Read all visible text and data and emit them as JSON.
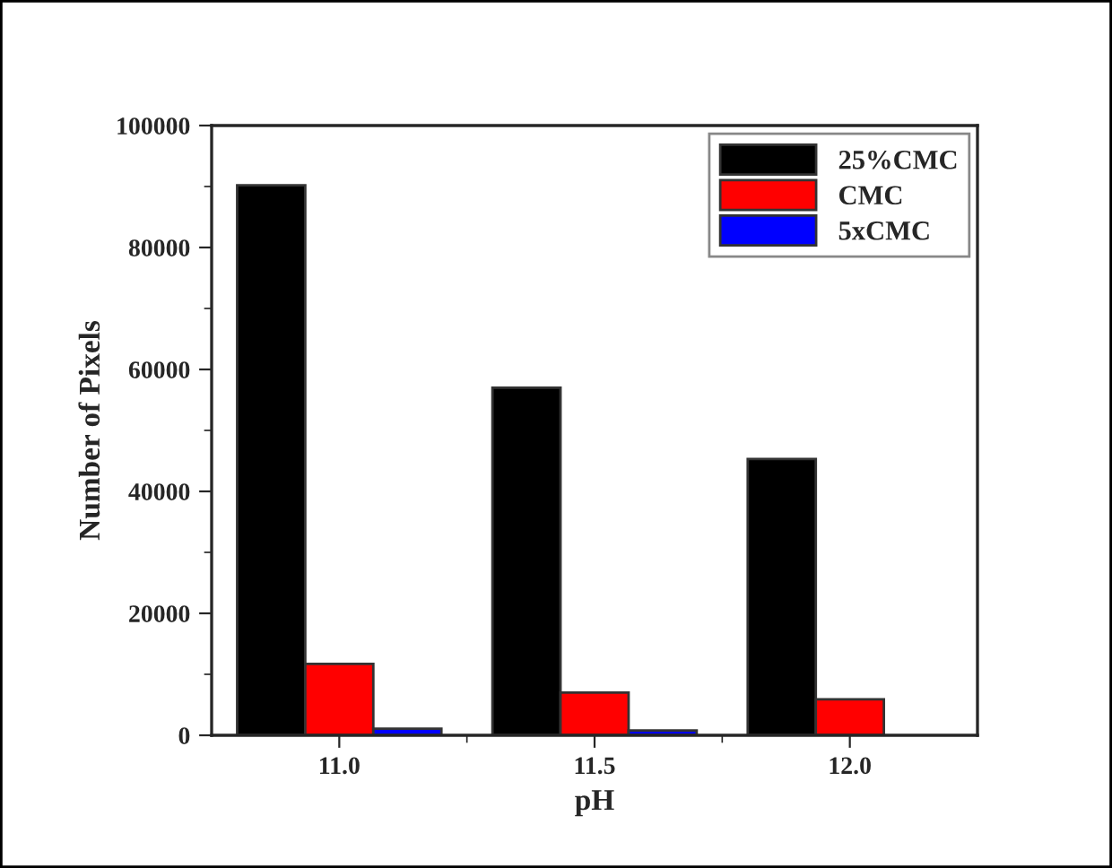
{
  "chart_data": {
    "type": "bar",
    "xlabel": "pH",
    "ylabel": "Number of Pixels",
    "categories": [
      "11.0",
      "11.5",
      "12.0"
    ],
    "series": [
      {
        "name": "25%CMC",
        "color": "#000000",
        "values": [
          90200,
          57000,
          45300
        ]
      },
      {
        "name": "CMC",
        "color": "#ff0000",
        "values": [
          11700,
          7000,
          5900
        ]
      },
      {
        "name": "5xCMC",
        "color": "#0000ff",
        "values": [
          1100,
          800,
          null
        ]
      }
    ],
    "ylim": [
      0,
      100000
    ],
    "yticks": [
      0,
      20000,
      40000,
      60000,
      80000,
      100000
    ],
    "grid": false,
    "legend": "top right"
  }
}
